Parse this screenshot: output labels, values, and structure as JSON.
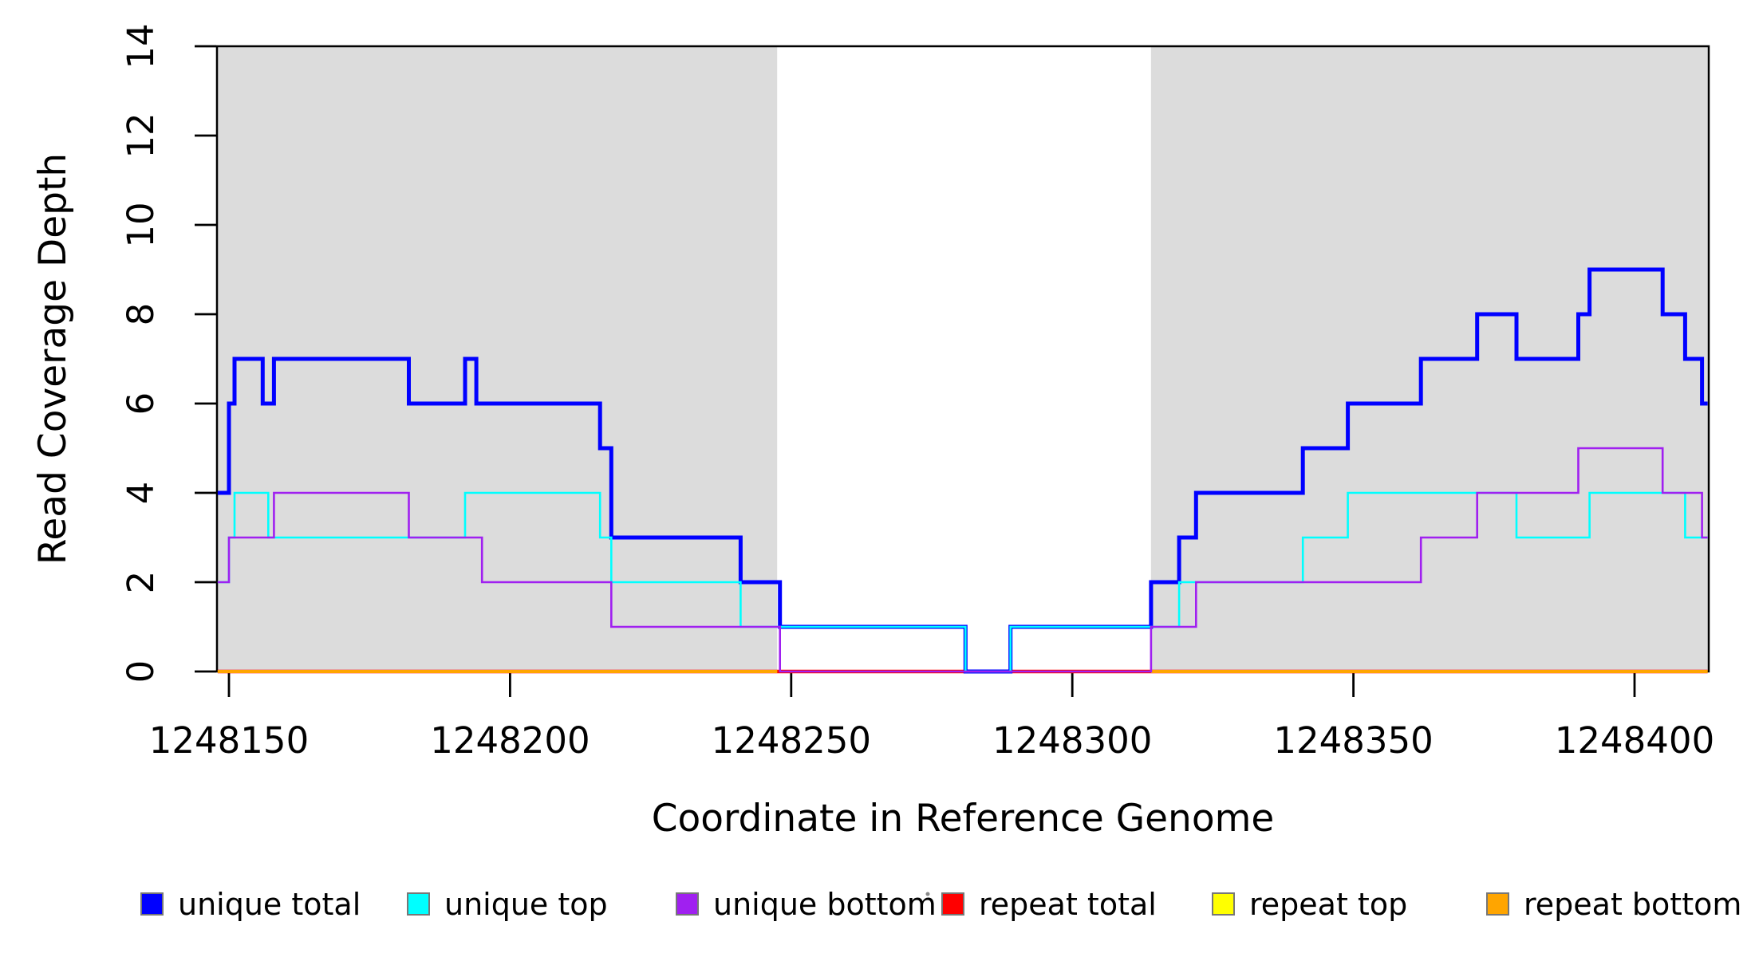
{
  "chart_data": {
    "type": "step",
    "title": "",
    "xlabel": "Coordinate in Reference Genome",
    "ylabel": "Read Coverage Depth",
    "xlim": [
      1248148,
      1248413
    ],
    "ylim": [
      0,
      14
    ],
    "x_ticks": [
      1248150,
      1248200,
      1248250,
      1248300,
      1248350,
      1248400
    ],
    "y_ticks": [
      0,
      2,
      4,
      6,
      8,
      10,
      12,
      14
    ],
    "grid": false,
    "background": "#FFFFFF",
    "shade_color": "#DCDCDC",
    "shaded_regions": [
      {
        "from": 1248148,
        "to": 1248247.5
      },
      {
        "from": 1248314,
        "to": 1248413
      }
    ],
    "draw_order": [
      "repeat total",
      "repeat top",
      "repeat bottom",
      "unique total",
      "unique top",
      "unique bottom"
    ],
    "series": [
      {
        "name": "unique total",
        "color": "#0000FF",
        "width": 5,
        "segments": [
          {
            "end": 1248413,
            "steps": [
              [
                1248148,
                4
              ],
              [
                1248150,
                6
              ],
              [
                1248151,
                7
              ],
              [
                1248156,
                6
              ],
              [
                1248158,
                7
              ],
              [
                1248182,
                6
              ],
              [
                1248192,
                7
              ],
              [
                1248194,
                6
              ],
              [
                1248216,
                5
              ],
              [
                1248218,
                3
              ],
              [
                1248241,
                2
              ],
              [
                1248248,
                1
              ],
              [
                1248281,
                0
              ],
              [
                1248289,
                1
              ],
              [
                1248314,
                2
              ],
              [
                1248319,
                3
              ],
              [
                1248322,
                4
              ],
              [
                1248341,
                5
              ],
              [
                1248349,
                6
              ],
              [
                1248362,
                7
              ],
              [
                1248372,
                8
              ],
              [
                1248379,
                7
              ],
              [
                1248390,
                8
              ],
              [
                1248392,
                9
              ],
              [
                1248405,
                8
              ],
              [
                1248409,
                7
              ],
              [
                1248412,
                6
              ]
            ]
          }
        ]
      },
      {
        "name": "unique top",
        "color": "#00FFFF",
        "width": 2.6,
        "segments": [
          {
            "end": 1248413,
            "steps": [
              [
                1248148,
                2
              ],
              [
                1248150,
                3
              ],
              [
                1248151,
                4
              ],
              [
                1248157,
                3
              ],
              [
                1248192,
                4
              ],
              [
                1248216,
                3
              ],
              [
                1248218,
                2
              ],
              [
                1248241,
                1
              ],
              [
                1248281,
                0
              ],
              [
                1248289,
                1
              ],
              [
                1248319,
                2
              ],
              [
                1248341,
                3
              ],
              [
                1248349,
                4
              ],
              [
                1248379,
                3
              ],
              [
                1248392,
                4
              ],
              [
                1248409,
                3
              ]
            ]
          }
        ]
      },
      {
        "name": "unique bottom",
        "color": "#A020F0",
        "width": 2.6,
        "segments": [
          {
            "end": 1248413,
            "steps": [
              [
                1248148,
                2
              ],
              [
                1248150,
                3
              ],
              [
                1248158,
                4
              ],
              [
                1248182,
                3
              ],
              [
                1248195,
                2
              ],
              [
                1248218,
                1
              ],
              [
                1248248,
                0
              ],
              [
                1248314,
                1
              ],
              [
                1248322,
                2
              ],
              [
                1248362,
                3
              ],
              [
                1248372,
                4
              ],
              [
                1248390,
                5
              ],
              [
                1248405,
                4
              ],
              [
                1248412,
                3
              ]
            ]
          }
        ]
      },
      {
        "name": "repeat total",
        "color": "#FF0000",
        "width": 4.5,
        "segments": [
          {
            "end": 1248413,
            "steps": [
              [
                1248148,
                0
              ]
            ]
          }
        ]
      },
      {
        "name": "repeat top",
        "color": "#FFFF00",
        "width": 3,
        "segments": [
          {
            "end": 1248247.5,
            "steps": [
              [
                1248148,
                0
              ]
            ]
          },
          {
            "end": 1248413,
            "steps": [
              [
                1248314,
                0
              ]
            ]
          }
        ]
      },
      {
        "name": "repeat bottom",
        "color": "#FFA500",
        "width": 4,
        "segments": [
          {
            "end": 1248247.5,
            "steps": [
              [
                1248148,
                0
              ]
            ]
          },
          {
            "end": 1248413,
            "steps": [
              [
                1248314,
                0
              ]
            ]
          }
        ]
      }
    ],
    "legend": {
      "position": "bottom",
      "items": [
        "unique total",
        "unique top",
        "unique bottom",
        "repeat total",
        "repeat top",
        "repeat bottom"
      ]
    }
  }
}
